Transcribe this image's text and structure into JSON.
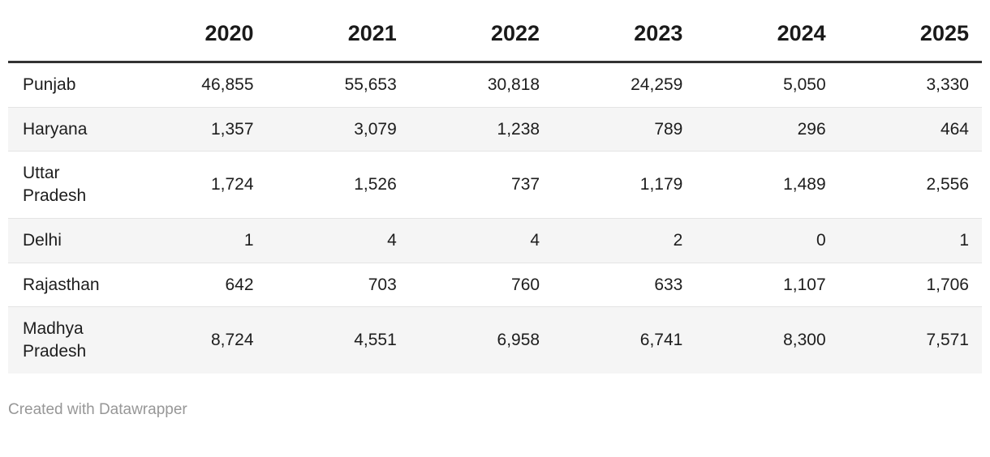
{
  "chart_data": {
    "type": "table",
    "columns": [
      "",
      "2020",
      "2021",
      "2022",
      "2023",
      "2024",
      "2025"
    ],
    "rows": [
      {
        "label": "Punjab",
        "values": [
          "46,855",
          "55,653",
          "30,818",
          "24,259",
          "5,050",
          "3,330"
        ]
      },
      {
        "label": "Haryana",
        "values": [
          "1,357",
          "3,079",
          "1,238",
          "789",
          "296",
          "464"
        ]
      },
      {
        "label": "Uttar Pradesh",
        "values": [
          "1,724",
          "1,526",
          "737",
          "1,179",
          "1,489",
          "2,556"
        ]
      },
      {
        "label": "Delhi",
        "values": [
          "1",
          "4",
          "4",
          "2",
          "0",
          "1"
        ]
      },
      {
        "label": "Rajasthan",
        "values": [
          "642",
          "703",
          "760",
          "633",
          "1,107",
          "1,706"
        ]
      },
      {
        "label": "Madhya Pradesh",
        "values": [
          "8,724",
          "4,551",
          "6,958",
          "6,741",
          "8,300",
          "7,571"
        ]
      }
    ],
    "layout": {
      "zebra_striping": true,
      "header_border": true
    }
  },
  "colors": {
    "background": "#ffffff",
    "header_border": "#333333",
    "row_alt_bg": "#f5f5f5",
    "row_divider": "#e4e4e4",
    "text": "#1d1d1d",
    "footer_text": "#979797"
  },
  "footer": {
    "credit": "Created with Datawrapper"
  }
}
